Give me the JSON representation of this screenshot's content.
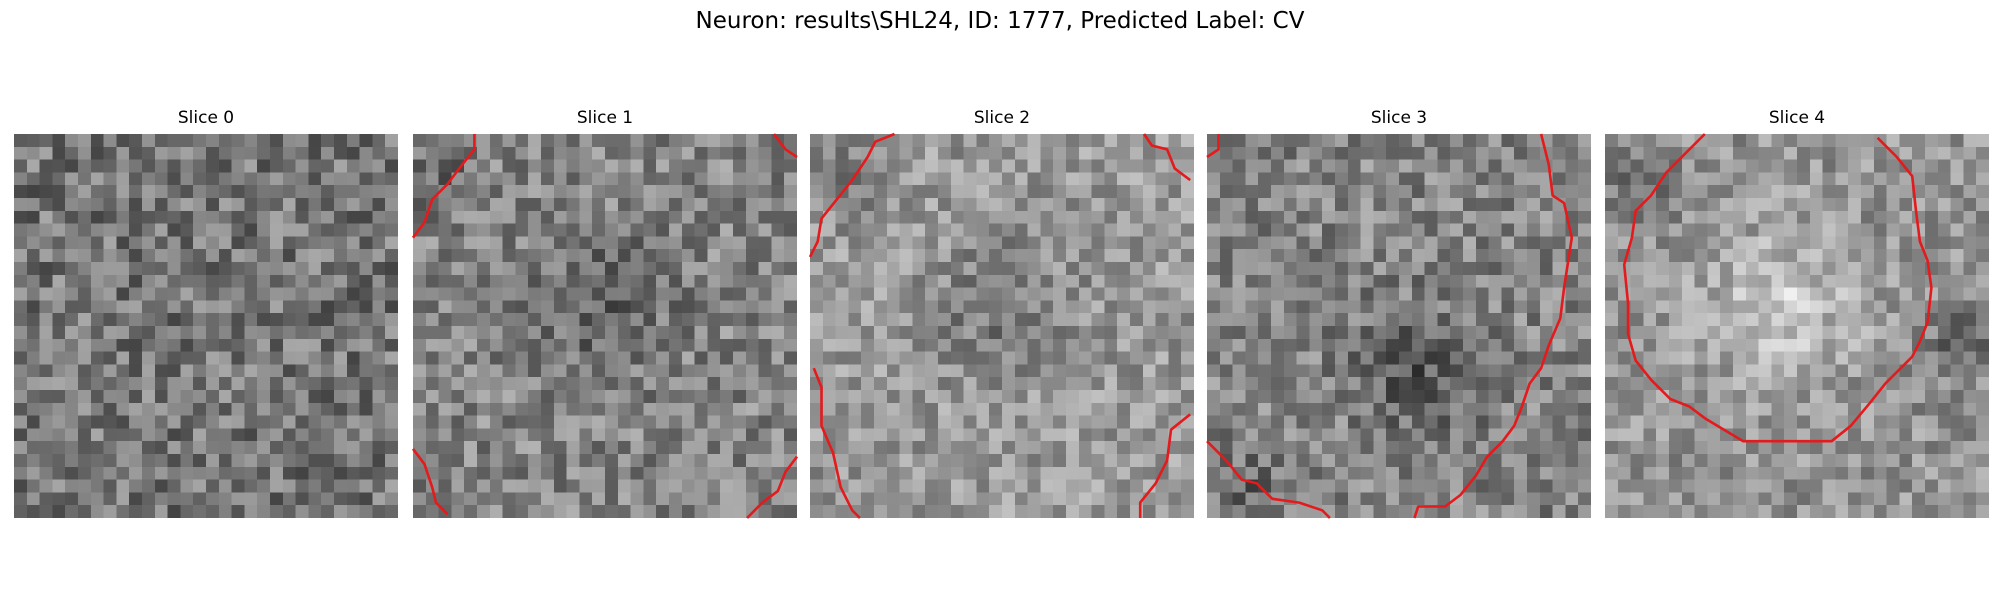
{
  "figure": {
    "title": "Neuron: results\\SHL24, ID: 1777, Predicted Label: CV"
  },
  "colors": {
    "contour": "#e41a1c",
    "colormap": "gray"
  },
  "panels": [
    {
      "title": "Slice 0",
      "seed": 11,
      "mean": 0.46,
      "contrast": 0.2,
      "pattern": "noise",
      "contours": []
    },
    {
      "title": "Slice 1",
      "seed": 23,
      "mean": 0.52,
      "contrast": 0.18,
      "pattern": "dark-center",
      "contours": [
        [
          [
            0.0,
            0.27
          ],
          [
            0.03,
            0.23
          ],
          [
            0.05,
            0.17
          ],
          [
            0.09,
            0.13
          ],
          [
            0.12,
            0.09
          ],
          [
            0.16,
            0.04
          ],
          [
            0.16,
            0.0
          ]
        ],
        [
          [
            0.94,
            0.0
          ],
          [
            0.97,
            0.04
          ],
          [
            1.0,
            0.06
          ]
        ],
        [
          [
            0.0,
            0.82
          ],
          [
            0.03,
            0.86
          ],
          [
            0.05,
            0.92
          ],
          [
            0.06,
            0.96
          ],
          [
            0.09,
            0.99
          ]
        ],
        [
          [
            0.87,
            1.0
          ],
          [
            0.91,
            0.96
          ],
          [
            0.95,
            0.93
          ],
          [
            0.97,
            0.88
          ],
          [
            1.0,
            0.84
          ]
        ]
      ]
    },
    {
      "title": "Slice 2",
      "seed": 37,
      "mean": 0.6,
      "contrast": 0.16,
      "pattern": "dark-center",
      "contours": [
        [
          [
            0.0,
            0.32
          ],
          [
            0.02,
            0.28
          ],
          [
            0.03,
            0.22
          ],
          [
            0.07,
            0.17
          ],
          [
            0.11,
            0.12
          ],
          [
            0.15,
            0.06
          ],
          [
            0.17,
            0.02
          ],
          [
            0.22,
            0.0
          ]
        ],
        [
          [
            0.87,
            0.0
          ],
          [
            0.89,
            0.03
          ],
          [
            0.93,
            0.04
          ],
          [
            0.95,
            0.09
          ],
          [
            0.99,
            0.12
          ]
        ],
        [
          [
            0.01,
            0.61
          ],
          [
            0.03,
            0.66
          ],
          [
            0.03,
            0.76
          ],
          [
            0.06,
            0.83
          ],
          [
            0.08,
            0.92
          ],
          [
            0.11,
            0.98
          ],
          [
            0.13,
            1.0
          ]
        ],
        [
          [
            0.86,
            1.0
          ],
          [
            0.86,
            0.96
          ],
          [
            0.9,
            0.91
          ],
          [
            0.93,
            0.85
          ],
          [
            0.94,
            0.77
          ],
          [
            0.99,
            0.73
          ]
        ]
      ]
    },
    {
      "title": "Slice 3",
      "seed": 53,
      "mean": 0.52,
      "contrast": 0.18,
      "pattern": "dark-lower-center",
      "contours": [
        [
          [
            0.0,
            0.06
          ],
          [
            0.03,
            0.04
          ],
          [
            0.03,
            0.0
          ]
        ],
        [
          [
            0.87,
            0.0
          ],
          [
            0.89,
            0.08
          ],
          [
            0.9,
            0.16
          ],
          [
            0.93,
            0.18
          ],
          [
            0.95,
            0.27
          ],
          [
            0.93,
            0.4
          ],
          [
            0.92,
            0.48
          ],
          [
            0.89,
            0.55
          ],
          [
            0.87,
            0.61
          ],
          [
            0.84,
            0.65
          ],
          [
            0.82,
            0.71
          ],
          [
            0.8,
            0.76
          ],
          [
            0.77,
            0.8
          ],
          [
            0.73,
            0.84
          ],
          [
            0.7,
            0.89
          ],
          [
            0.66,
            0.94
          ],
          [
            0.62,
            0.97
          ],
          [
            0.55,
            0.97
          ],
          [
            0.54,
            1.0
          ]
        ],
        [
          [
            0.0,
            0.8
          ],
          [
            0.05,
            0.85
          ],
          [
            0.09,
            0.9
          ],
          [
            0.13,
            0.91
          ],
          [
            0.17,
            0.95
          ],
          [
            0.24,
            0.96
          ],
          [
            0.3,
            0.98
          ],
          [
            0.32,
            1.0
          ]
        ]
      ]
    },
    {
      "title": "Slice 4",
      "seed": 71,
      "mean": 0.58,
      "contrast": 0.16,
      "pattern": "bright-center",
      "contours": [
        [
          [
            0.26,
            0.0
          ],
          [
            0.21,
            0.05
          ],
          [
            0.16,
            0.1
          ],
          [
            0.12,
            0.16
          ],
          [
            0.08,
            0.2
          ],
          [
            0.07,
            0.27
          ],
          [
            0.05,
            0.34
          ],
          [
            0.06,
            0.44
          ],
          [
            0.06,
            0.52
          ],
          [
            0.08,
            0.59
          ],
          [
            0.12,
            0.64
          ],
          [
            0.17,
            0.69
          ],
          [
            0.22,
            0.71
          ],
          [
            0.26,
            0.74
          ],
          [
            0.31,
            0.77
          ],
          [
            0.36,
            0.8
          ],
          [
            0.44,
            0.8
          ],
          [
            0.59,
            0.8
          ],
          [
            0.64,
            0.76
          ],
          [
            0.69,
            0.7
          ],
          [
            0.73,
            0.65
          ],
          [
            0.77,
            0.61
          ],
          [
            0.8,
            0.58
          ],
          [
            0.82,
            0.54
          ],
          [
            0.84,
            0.49
          ],
          [
            0.85,
            0.4
          ],
          [
            0.84,
            0.33
          ],
          [
            0.82,
            0.28
          ],
          [
            0.81,
            0.2
          ],
          [
            0.8,
            0.11
          ],
          [
            0.76,
            0.06
          ],
          [
            0.71,
            0.01
          ]
        ]
      ]
    }
  ]
}
